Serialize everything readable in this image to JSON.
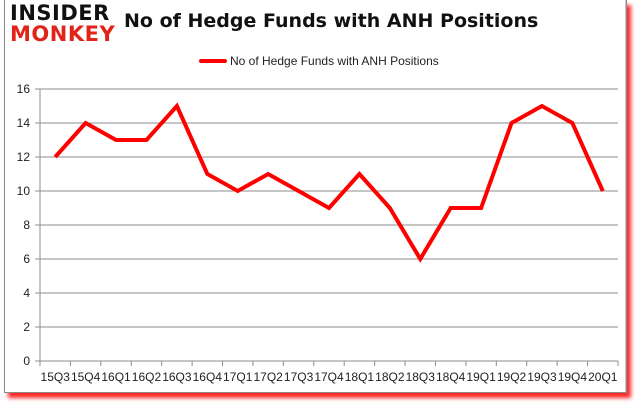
{
  "logo": {
    "line1": "INSIDER",
    "line2": "MONKEY"
  },
  "title": "No of Hedge Funds with ANH Positions",
  "legend": {
    "label": "No of Hedge Funds with ANH Positions",
    "color": "#ff0000"
  },
  "chart_data": {
    "type": "line",
    "title": "No of Hedge Funds with ANH Positions",
    "xlabel": "",
    "ylabel": "",
    "categories": [
      "15Q3",
      "15Q4",
      "16Q1",
      "16Q2",
      "16Q3",
      "16Q4",
      "17Q1",
      "17Q2",
      "17Q3",
      "17Q4",
      "18Q1",
      "18Q2",
      "18Q3",
      "18Q4",
      "19Q1",
      "19Q2",
      "19Q3",
      "19Q4",
      "20Q1"
    ],
    "series": [
      {
        "name": "No of Hedge Funds with ANH Positions",
        "color": "#ff0000",
        "values": [
          12,
          14,
          13,
          13,
          15,
          11,
          10,
          11,
          10,
          9,
          11,
          9,
          6,
          9,
          9,
          14,
          15,
          14,
          10
        ]
      }
    ],
    "ylim": [
      0,
      16
    ],
    "yticks": [
      0,
      2,
      4,
      6,
      8,
      10,
      12,
      14,
      16
    ],
    "grid": true,
    "legend_position": "top"
  }
}
